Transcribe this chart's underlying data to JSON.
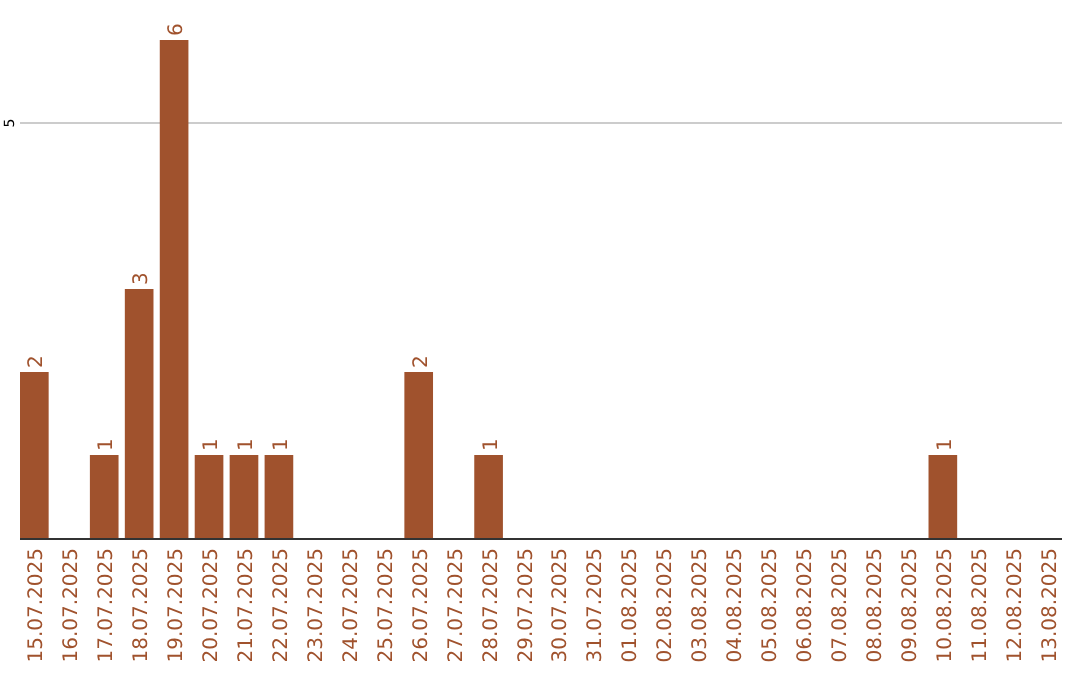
{
  "chart_data": {
    "type": "bar",
    "categories": [
      "15.07.2025",
      "16.07.2025",
      "17.07.2025",
      "18.07.2025",
      "19.07.2025",
      "20.07.2025",
      "21.07.2025",
      "22.07.2025",
      "23.07.2025",
      "24.07.2025",
      "25.07.2025",
      "26.07.2025",
      "27.07.2025",
      "28.07.2025",
      "29.07.2025",
      "30.07.2025",
      "31.07.2025",
      "01.08.2025",
      "02.08.2025",
      "03.08.2025",
      "04.08.2025",
      "05.08.2025",
      "06.08.2025",
      "07.08.2025",
      "08.08.2025",
      "09.08.2025",
      "10.08.2025",
      "11.08.2025",
      "12.08.2025",
      "13.08.2025"
    ],
    "values": [
      2,
      0,
      1,
      3,
      6,
      1,
      1,
      1,
      0,
      0,
      0,
      2,
      0,
      1,
      0,
      0,
      0,
      0,
      0,
      0,
      0,
      0,
      0,
      0,
      0,
      0,
      1,
      0,
      0,
      0
    ],
    "value_labels": [
      "2",
      null,
      "1",
      "3",
      "6",
      "1",
      "1",
      "1",
      null,
      null,
      null,
      "2",
      null,
      "1",
      null,
      null,
      null,
      null,
      null,
      null,
      null,
      null,
      null,
      null,
      null,
      null,
      "1",
      null,
      null,
      null
    ],
    "color": "#a0522d",
    "ref_lines": [
      {
        "axis": "y",
        "value": 5,
        "label": "5",
        "color": "#cccccc"
      }
    ]
  }
}
